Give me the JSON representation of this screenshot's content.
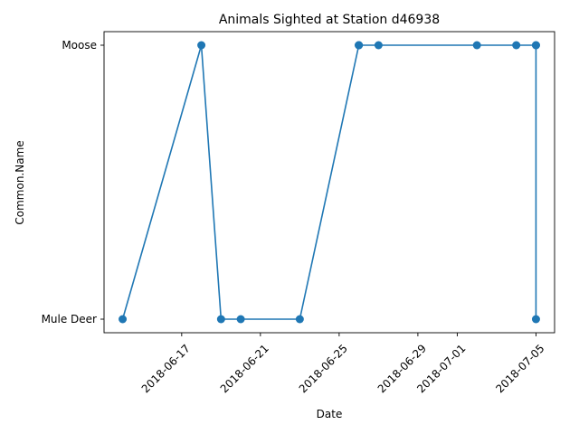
{
  "chart_data": {
    "type": "line",
    "title": "Animals Sighted at Station d46938",
    "xlabel": "Date",
    "ylabel": "Common.Name",
    "x_ticks": [
      "2018-06-17",
      "2018-06-21",
      "2018-06-25",
      "2018-06-29",
      "2018-07-01",
      "2018-07-05"
    ],
    "y_categories": [
      "Mule Deer",
      "Moose"
    ],
    "grid": false,
    "color": "#1f77b4",
    "points": [
      {
        "x": "2018-06-14",
        "y": "Mule Deer"
      },
      {
        "x": "2018-06-18",
        "y": "Moose"
      },
      {
        "x": "2018-06-19",
        "y": "Mule Deer"
      },
      {
        "x": "2018-06-20",
        "y": "Mule Deer"
      },
      {
        "x": "2018-06-23",
        "y": "Mule Deer"
      },
      {
        "x": "2018-06-26",
        "y": "Moose"
      },
      {
        "x": "2018-06-26",
        "y": "Moose"
      },
      {
        "x": "2018-06-26",
        "y": "Moose"
      },
      {
        "x": "2018-06-27",
        "y": "Moose"
      },
      {
        "x": "2018-07-02",
        "y": "Moose"
      },
      {
        "x": "2018-07-04",
        "y": "Moose"
      },
      {
        "x": "2018-07-05",
        "y": "Moose"
      },
      {
        "x": "2018-07-05",
        "y": "Mule Deer"
      },
      {
        "x": "2018-07-05",
        "y": "Moose"
      }
    ]
  }
}
